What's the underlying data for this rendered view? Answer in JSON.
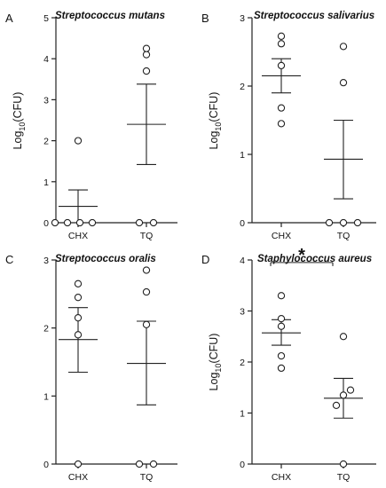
{
  "chart_data": [
    {
      "type": "scatter",
      "panel_letter": "A",
      "title": "Streptococcus mutans",
      "ylabel_base": "Log",
      "ylabel_sub": "10",
      "ylabel_rest": "(CFU)",
      "categories": [
        "CHX",
        "TQ"
      ],
      "ylim": [
        0,
        5
      ],
      "yticks": [
        0,
        1,
        2,
        3,
        4,
        5
      ],
      "groups": [
        {
          "name": "CHX",
          "points": [
            0,
            0,
            0,
            0,
            2.0
          ],
          "mean": 0.4,
          "sem": [
            0.0,
            0.8
          ]
        },
        {
          "name": "TQ",
          "points": [
            0,
            0,
            3.7,
            4.1,
            4.25
          ],
          "mean": 2.4,
          "sem": [
            1.42,
            3.38
          ]
        }
      ],
      "significance": null
    },
    {
      "type": "scatter",
      "panel_letter": "B",
      "title": "Streptococcus salivarius",
      "ylabel_base": "Log",
      "ylabel_sub": "10",
      "ylabel_rest": "(CFU)",
      "categories": [
        "CHX",
        "TQ"
      ],
      "ylim": [
        0,
        3
      ],
      "yticks": [
        0,
        1,
        2,
        3
      ],
      "groups": [
        {
          "name": "CHX",
          "points": [
            1.45,
            1.68,
            2.3,
            2.62,
            2.73
          ],
          "mean": 2.15,
          "sem": [
            1.9,
            2.4
          ]
        },
        {
          "name": "TQ",
          "points": [
            0,
            0,
            0,
            2.05,
            2.58
          ],
          "mean": 0.93,
          "sem": [
            0.35,
            1.5
          ]
        }
      ],
      "significance": null
    },
    {
      "type": "scatter",
      "panel_letter": "C",
      "title": "Streptococcus oralis",
      "ylabel_base": "",
      "ylabel_sub": "",
      "ylabel_rest": "",
      "categories": [
        "CHX",
        "TQ"
      ],
      "ylim": [
        0,
        3
      ],
      "yticks": [
        0,
        1,
        2,
        3
      ],
      "groups": [
        {
          "name": "CHX",
          "points": [
            0,
            1.9,
            2.15,
            2.45,
            2.65
          ],
          "mean": 1.83,
          "sem": [
            1.35,
            2.3
          ]
        },
        {
          "name": "TQ",
          "points": [
            0,
            0,
            2.05,
            2.53,
            2.85
          ],
          "mean": 1.48,
          "sem": [
            0.87,
            2.1
          ]
        }
      ],
      "significance": null
    },
    {
      "type": "scatter",
      "panel_letter": "D",
      "title": "Staphylococcus aureus",
      "ylabel_base": "Log",
      "ylabel_sub": "10",
      "ylabel_rest": "(CFU)",
      "categories": [
        "CHX",
        "TQ"
      ],
      "ylim": [
        0,
        4
      ],
      "yticks": [
        0,
        1,
        2,
        3,
        4
      ],
      "groups": [
        {
          "name": "CHX",
          "points": [
            1.88,
            2.12,
            2.7,
            2.85,
            3.3
          ],
          "mean": 2.57,
          "sem": [
            2.33,
            2.83
          ]
        },
        {
          "name": "TQ",
          "points": [
            0,
            1.15,
            1.35,
            1.45,
            2.5
          ],
          "mean": 1.29,
          "sem": [
            0.9,
            1.68
          ]
        }
      ],
      "significance": {
        "label": "*",
        "between": [
          "CHX",
          "TQ"
        ],
        "level": 3.95
      }
    }
  ]
}
